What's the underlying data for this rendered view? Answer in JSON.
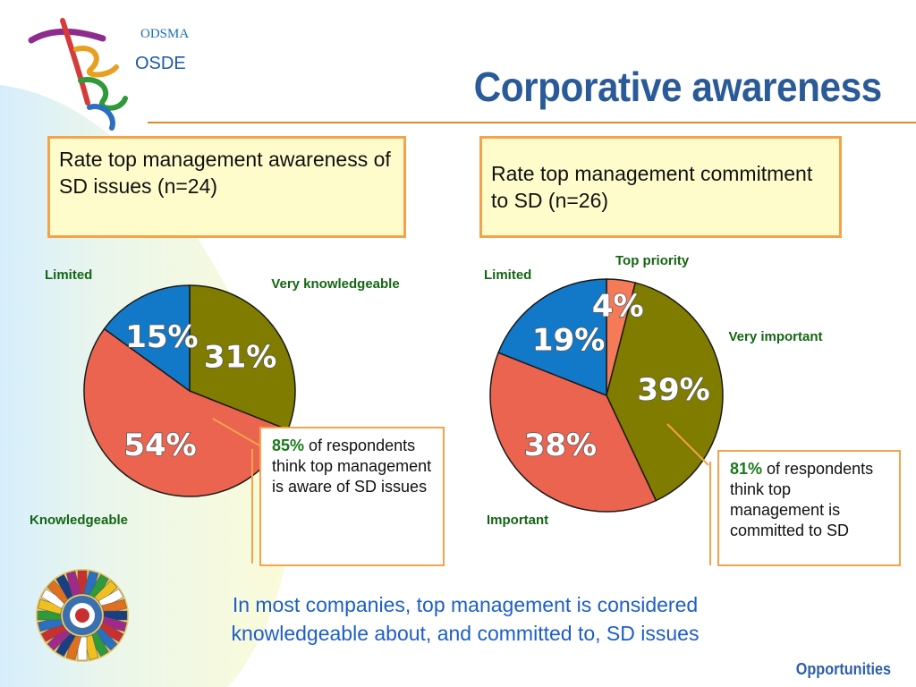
{
  "logo": {
    "small_text": "ODSMA",
    "big_text": "OSDE"
  },
  "title": "Corporative awareness",
  "chart_data": [
    {
      "type": "pie",
      "title": "Rate top management awareness of SD issues (n=24)",
      "slices": [
        {
          "label": "Very knowledgeable",
          "value": 31,
          "display": "31%",
          "color": "#7f7c00"
        },
        {
          "label": "Knowledgeable",
          "value": 54,
          "display": "54%",
          "color": "#ea6450"
        },
        {
          "label": "Limited",
          "value": 15,
          "display": "15%",
          "color": "#1278c8"
        }
      ]
    },
    {
      "type": "pie",
      "title": "Rate top management commitment to SD (n=26)",
      "slices": [
        {
          "label": "Top priority",
          "value": 4,
          "display": "4%",
          "color": "#f47a58"
        },
        {
          "label": "Very important",
          "value": 39,
          "display": "39%",
          "color": "#7f7c00"
        },
        {
          "label": "Important",
          "value": 38,
          "display": "38%",
          "color": "#ea6450"
        },
        {
          "label": "Limited",
          "value": 19,
          "display": "19%",
          "color": "#1278c8"
        }
      ]
    }
  ],
  "notes": {
    "left": {
      "highlight": "85%",
      "rest": " of respondents think top management is aware of SD issues"
    },
    "right": {
      "highlight": "81%",
      "rest": " of respondents think top management is committed to SD"
    }
  },
  "summary": "In most companies, top management is considered knowledgeable about, and committed to, SD issues",
  "footer": "Opportunities"
}
